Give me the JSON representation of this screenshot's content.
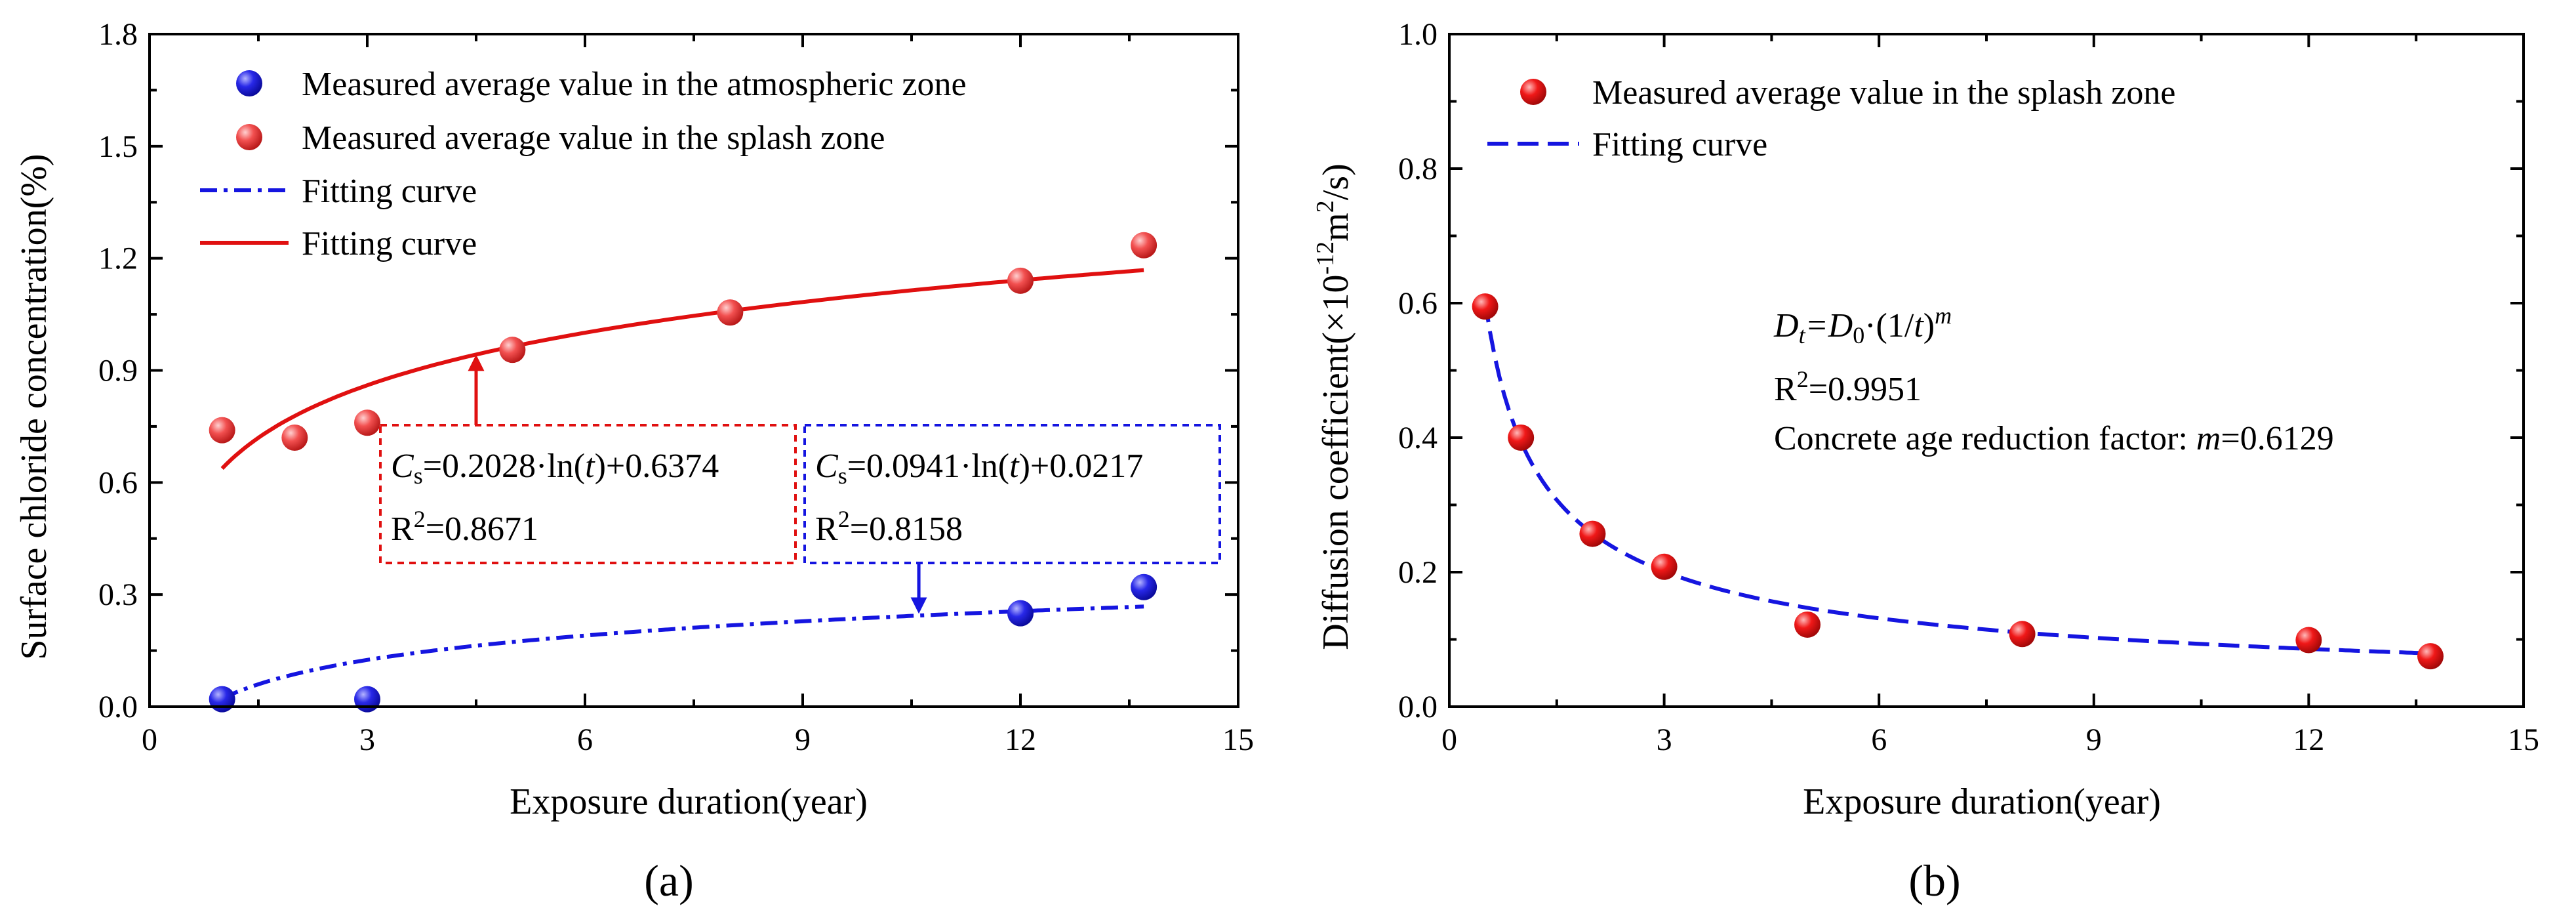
{
  "chart_data": [
    {
      "type": "scatter",
      "panel_label": "(a)",
      "xlabel": "Exposure duration(year)",
      "ylabel": "Surface chloride concentration(%)",
      "xlim": [
        0,
        15
      ],
      "ylim": [
        0,
        1.8
      ],
      "x_ticks": [
        "0",
        "3",
        "6",
        "9",
        "12",
        "15"
      ],
      "y_ticks": [
        "0.0",
        "0.3",
        "0.6",
        "0.9",
        "1.2",
        "1.5",
        "1.8"
      ],
      "series": [
        {
          "name": "Measured average value in the atmospheric zone",
          "kind": "points",
          "color": "#1515e0",
          "x": [
            1,
            3,
            12,
            13.7
          ],
          "y": [
            0.02,
            0.02,
            0.25,
            0.32
          ]
        },
        {
          "name": "Measured average value in the splash zone",
          "kind": "points",
          "color": "#f24444",
          "x": [
            1,
            2,
            3,
            5,
            8,
            12,
            13.7
          ],
          "y": [
            0.74,
            0.72,
            0.76,
            0.955,
            1.055,
            1.14,
            1.235
          ]
        },
        {
          "name": "Fitting curve",
          "kind": "curve",
          "style": "dashdot",
          "color": "#1515e0",
          "model": "log",
          "a": 0.0941,
          "b": 0.0217,
          "x_range": [
            1,
            13.7
          ]
        },
        {
          "name": "Fitting curve",
          "kind": "curve",
          "style": "solid",
          "color": "#e01010",
          "model": "log",
          "a": 0.2028,
          "b": 0.6374,
          "x_range": [
            1,
            13.7
          ]
        }
      ],
      "annotations": [
        {
          "id": "splash-eq",
          "color": "#e01010",
          "eq_var": "C",
          "eq_sub": "s",
          "eq_mid": "=0.2028·ln(",
          "eq_t": "t",
          "eq_end": ")+0.6374",
          "r2_prefix": "R",
          "r2_sup": "2",
          "r2_value": "=0.8671",
          "arrow_target": [
            4.5,
            0.945
          ]
        },
        {
          "id": "atmos-eq",
          "color": "#1515e0",
          "eq_var": "C",
          "eq_sub": "s",
          "eq_mid": "=0.0941·ln(",
          "eq_t": "t",
          "eq_end": ")+0.0217",
          "r2_prefix": "R",
          "r2_sup": "2",
          "r2_value": "=0.8158",
          "arrow_target": [
            10.6,
            0.246
          ]
        }
      ]
    },
    {
      "type": "scatter",
      "panel_label": "(b)",
      "xlabel": "Exposure duration(year)",
      "ylabel_prefix": "Diffusion coefficient(×10",
      "ylabel_sup1": "-12",
      "ylabel_mid": "m",
      "ylabel_sup2": "2",
      "ylabel_end": "/s)",
      "xlim": [
        0,
        15
      ],
      "ylim": [
        0,
        1.0
      ],
      "x_ticks": [
        "0",
        "3",
        "6",
        "9",
        "12",
        "15"
      ],
      "y_ticks": [
        "0.0",
        "0.2",
        "0.4",
        "0.6",
        "0.8",
        "1.0"
      ],
      "series": [
        {
          "name": "Measured average value in the splash zone",
          "kind": "points",
          "color": "#f21a1a",
          "x": [
            0.5,
            1,
            2,
            3,
            5,
            8,
            12,
            13.7
          ],
          "y": [
            0.595,
            0.4,
            0.257,
            0.208,
            0.122,
            0.108,
            0.099,
            0.075
          ]
        },
        {
          "name": "Fitting curve",
          "kind": "curve",
          "style": "dashed",
          "color": "#1515e0",
          "model": "power",
          "D0": 0.394,
          "m": 0.6129,
          "x_range": [
            0.5,
            13.7
          ]
        }
      ],
      "annotations": {
        "eq_D": "D",
        "eq_sub_t": "t",
        "eq_mid": "=D",
        "eq_sub_0": "0",
        "eq_dot": "·(1/",
        "eq_t": "t",
        "eq_close": ")",
        "eq_sup_m": "m",
        "r2_prefix": "R",
        "r2_sup": "2",
        "r2_value": "=0.9951",
        "factor_label": "Concrete age reduction factor: ",
        "factor_m": "m",
        "factor_value": "=0.6129"
      }
    }
  ]
}
